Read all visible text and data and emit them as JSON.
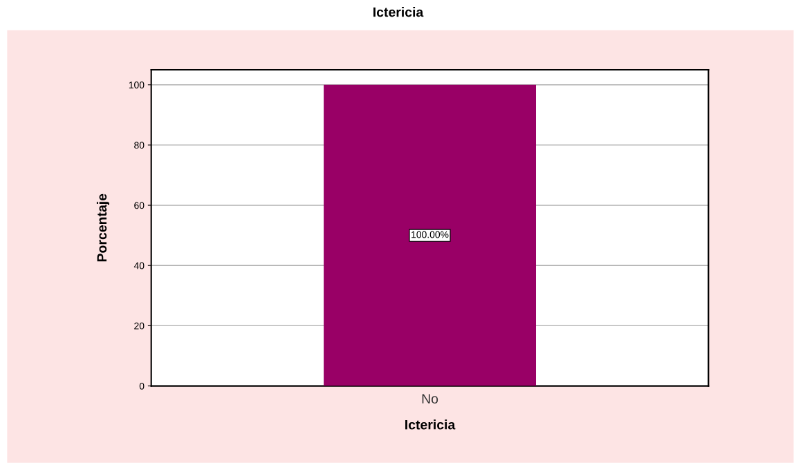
{
  "chart_data": {
    "type": "bar",
    "title": "Ictericia",
    "xlabel": "Ictericia",
    "ylabel": "Porcentaje",
    "categories": [
      "No"
    ],
    "values": [
      100
    ],
    "value_labels": [
      "100.00%"
    ],
    "color": "#990066",
    "ylim": [
      0,
      105
    ],
    "yticks": [
      0,
      20,
      40,
      60,
      80,
      100
    ],
    "grid": "y"
  }
}
